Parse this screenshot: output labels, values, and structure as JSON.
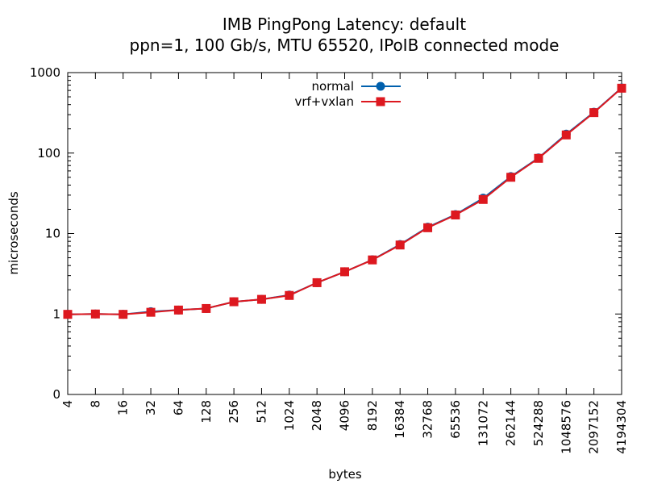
{
  "chart_data": {
    "type": "line",
    "title": "IMB PingPong Latency: default",
    "subtitle": "ppn=1, 100 Gb/s, MTU 65520, IPoIB connected mode",
    "xlabel": "bytes",
    "ylabel": "microseconds",
    "x_scale": "log2",
    "y_scale": "log10",
    "xlim": [
      4,
      4194304
    ],
    "ylim": [
      0.1,
      1000
    ],
    "y_ticks": [
      {
        "value": 0.1,
        "label": "0"
      },
      {
        "value": 1,
        "label": "1"
      },
      {
        "value": 10,
        "label": "10"
      },
      {
        "value": 100,
        "label": "100"
      },
      {
        "value": 1000,
        "label": "1000"
      }
    ],
    "categories": [
      4,
      8,
      16,
      32,
      64,
      128,
      256,
      512,
      1024,
      2048,
      4096,
      8192,
      16384,
      32768,
      65536,
      131072,
      262144,
      524288,
      1048576,
      2097152,
      4194304
    ],
    "x_tick_labels": [
      "4",
      "8",
      "16",
      "32",
      "64",
      "128",
      "256",
      "512",
      "1024",
      "2048",
      "4096",
      "8192",
      "16384",
      "32768",
      "65536",
      "131072",
      "262144",
      "524288",
      "1048576",
      "2097152",
      "4194304"
    ],
    "legend_position": "top-center",
    "grid": false,
    "series": [
      {
        "name": "normal",
        "color": "#0060ad",
        "marker": "circle",
        "values": [
          0.99,
          1.0,
          0.99,
          1.07,
          1.12,
          1.17,
          1.42,
          1.52,
          1.72,
          2.45,
          3.35,
          4.72,
          7.3,
          12.0,
          17.2,
          27.5,
          51.0,
          87.0,
          172,
          322,
          645
        ]
      },
      {
        "name": "vrf+vxlan",
        "color": "#dd181f",
        "marker": "square",
        "values": [
          0.99,
          1.0,
          0.99,
          1.05,
          1.12,
          1.17,
          1.42,
          1.52,
          1.7,
          2.45,
          3.35,
          4.7,
          7.2,
          11.8,
          17.0,
          26.5,
          50.0,
          86.0,
          168,
          318,
          640
        ]
      }
    ]
  }
}
